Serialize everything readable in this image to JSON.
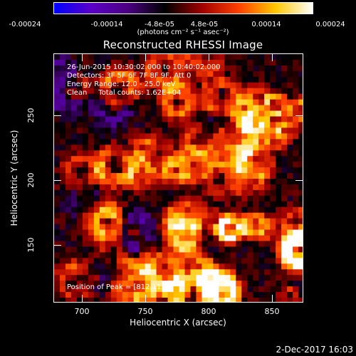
{
  "colorbar": {
    "ticks": [
      "-0.00024",
      "-0.00014",
      "-4.8e-05",
      "4.8e-05",
      "0.00014",
      "0.00024"
    ],
    "units": "(photons cm⁻² s⁻¹ asec⁻²)",
    "gradient_colors": [
      "#0000ff",
      "#5a00c8",
      "#4b0080",
      "#000000",
      "#a00000",
      "#ff4000",
      "#ffc800",
      "#ffffff"
    ]
  },
  "title": "Reconstructed RHESSI Image",
  "info": {
    "line1": "26-Jun-2015 10:30:02.000 to 10:40:02.000",
    "line2": "Detectors: 3F 5F 6F 7F 8F 9F, Att 0",
    "line3": "Energy Range: 12.0 - 25.0 keV",
    "line4": "Clean     Total counts: 1.62E+04"
  },
  "peak": "Position of Peak = [812,113]",
  "axes": {
    "xlabel": "Heliocentric X (arcsec)",
    "ylabel": "Heliocentric Y (arcsec)",
    "xticks": [
      "700",
      "750",
      "800",
      "850"
    ],
    "yticks": [
      "150",
      "200",
      "250"
    ]
  },
  "date_stamp": "2-Dec-2017 16:03"
}
